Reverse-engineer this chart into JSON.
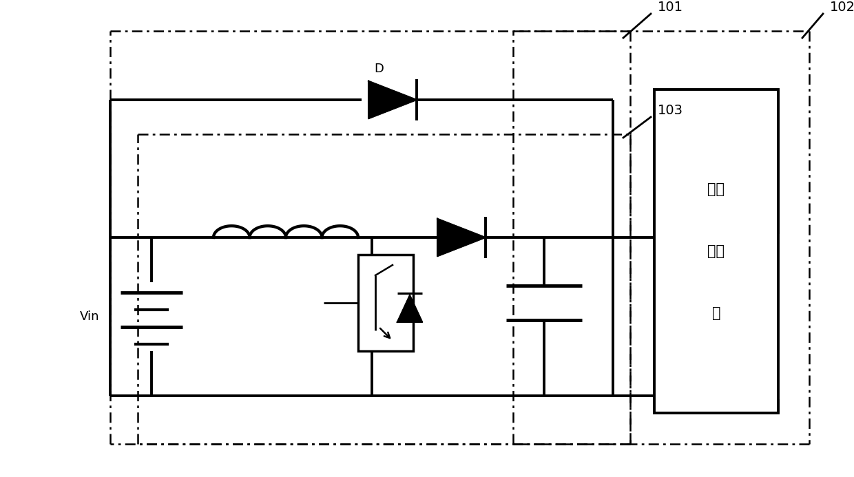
{
  "bg_color": "#ffffff",
  "lc": "#000000",
  "label_101": "101",
  "label_102": "102",
  "label_103": "103",
  "label_D": "D",
  "label_Vin": "Vin",
  "label_pv": "光伏逆变器",
  "figsize": [
    12.4,
    6.93
  ],
  "dpi": 100
}
